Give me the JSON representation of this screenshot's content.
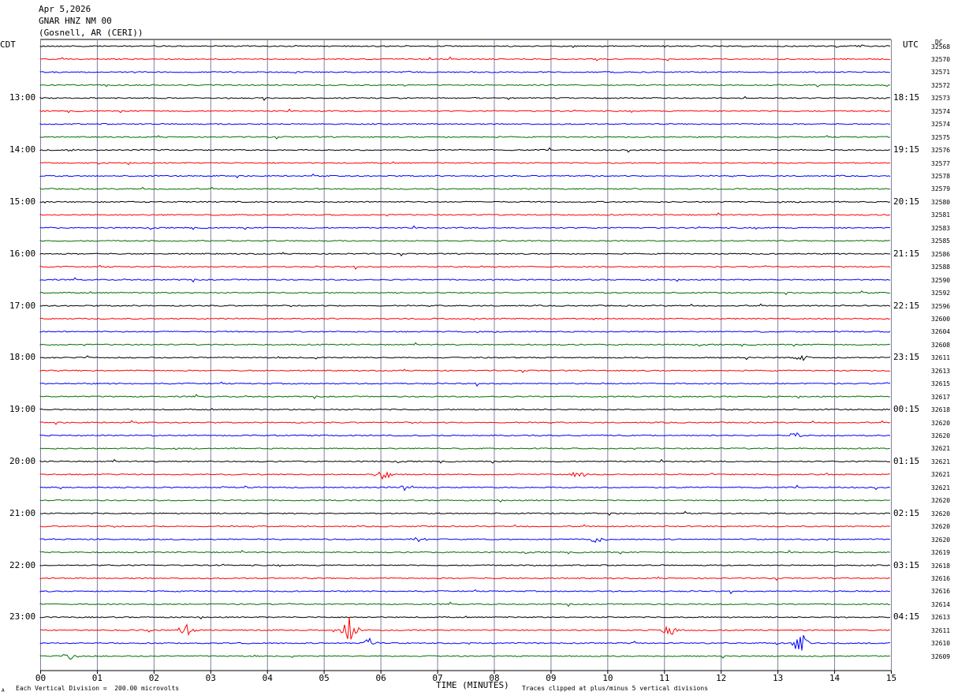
{
  "header": {
    "date": "Apr 5,2026",
    "station": "GNAR HNZ NM 00",
    "location": "(Gosnell, AR (CERI))"
  },
  "left_timezone": "CDT",
  "right_timezone": "UTC",
  "right_header": "DC",
  "footer": {
    "vertical_division": "Each Vertical Division =  200.00 microvolts",
    "clip_note": "Traces clipped at plus/minus 5 vertical divisions",
    "corner_mark": "A"
  },
  "colors": {
    "trace_cycle": [
      "#000000",
      "#ff0000",
      "#0000ff",
      "#007000"
    ],
    "grid": "#7f7f9f"
  },
  "chart_data": {
    "type": "line",
    "title": "",
    "xlabel": "TIME (MINUTES)",
    "xlim": [
      0,
      15
    ],
    "x_ticks": [
      "00",
      "01",
      "02",
      "03",
      "04",
      "05",
      "06",
      "07",
      "08",
      "09",
      "10",
      "11",
      "12",
      "13",
      "14",
      "15"
    ],
    "left_hour_labels": [
      {
        "row": 4,
        "label": "13:00"
      },
      {
        "row": 8,
        "label": "14:00"
      },
      {
        "row": 12,
        "label": "15:00"
      },
      {
        "row": 16,
        "label": "16:00"
      },
      {
        "row": 20,
        "label": "17:00"
      },
      {
        "row": 24,
        "label": "18:00"
      },
      {
        "row": 28,
        "label": "19:00"
      },
      {
        "row": 32,
        "label": "20:00"
      },
      {
        "row": 36,
        "label": "21:00"
      },
      {
        "row": 40,
        "label": "22:00"
      },
      {
        "row": 44,
        "label": "23:00"
      }
    ],
    "right_hour_labels": [
      {
        "row": 4,
        "label": "18:15"
      },
      {
        "row": 8,
        "label": "19:15"
      },
      {
        "row": 12,
        "label": "20:15"
      },
      {
        "row": 16,
        "label": "21:15"
      },
      {
        "row": 20,
        "label": "22:15"
      },
      {
        "row": 24,
        "label": "23:15"
      },
      {
        "row": 28,
        "label": "00:15"
      },
      {
        "row": 32,
        "label": "01:15"
      },
      {
        "row": 36,
        "label": "02:15"
      },
      {
        "row": 40,
        "label": "03:15"
      },
      {
        "row": 44,
        "label": "04:15"
      }
    ],
    "dc_offsets": [
      "32568",
      "32570",
      "32571",
      "32572",
      "32573",
      "32574",
      "32574",
      "32575",
      "32576",
      "32577",
      "32578",
      "32579",
      "32580",
      "32581",
      "32583",
      "32585",
      "32586",
      "32588",
      "32590",
      "32592",
      "32596",
      "32600",
      "32604",
      "32608",
      "32611",
      "32613",
      "32615",
      "32617",
      "32618",
      "32620",
      "32620",
      "32621",
      "32621",
      "32621",
      "32621",
      "32620",
      "32620",
      "32620",
      "32620",
      "32619",
      "32618",
      "32616",
      "32616",
      "32614",
      "32613",
      "32611",
      "32610",
      "32609"
    ],
    "events": [
      {
        "row": 45,
        "minute": 11.1,
        "amp": 1.0
      },
      {
        "row": 45,
        "minute": 5.45,
        "amp": 2.2
      },
      {
        "row": 45,
        "minute": 2.6,
        "amp": 0.9
      },
      {
        "row": 46,
        "minute": 13.4,
        "amp": 2.0
      },
      {
        "row": 46,
        "minute": 5.8,
        "amp": 0.8
      },
      {
        "row": 47,
        "minute": 0.55,
        "amp": 0.6
      },
      {
        "row": 33,
        "minute": 6.05,
        "amp": 0.8
      },
      {
        "row": 33,
        "minute": 9.5,
        "amp": 0.7
      },
      {
        "row": 34,
        "minute": 6.45,
        "amp": 0.5
      },
      {
        "row": 30,
        "minute": 13.3,
        "amp": 0.5
      },
      {
        "row": 38,
        "minute": 6.7,
        "amp": 0.45
      },
      {
        "row": 38,
        "minute": 9.8,
        "amp": 0.45
      },
      {
        "row": 24,
        "minute": 13.45,
        "amp": 0.45
      },
      {
        "row": 8,
        "minute": 0.5,
        "amp": 0.3
      },
      {
        "row": 0,
        "minute": 14.5,
        "amp": 0.15
      }
    ]
  }
}
